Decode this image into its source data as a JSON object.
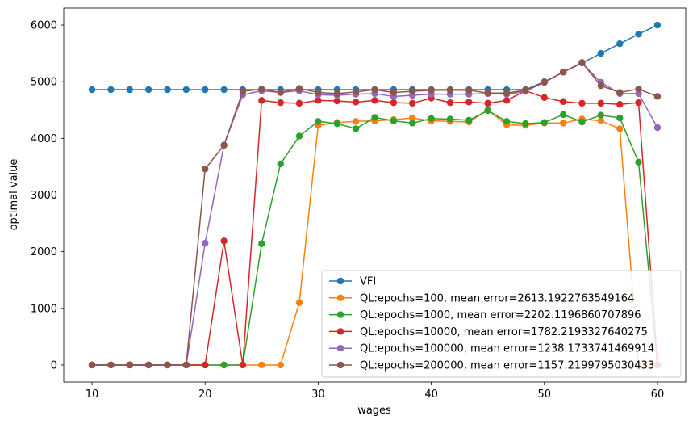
{
  "chart_data": {
    "type": "line",
    "title": "",
    "xlabel": "wages",
    "ylabel": "optimal value",
    "xlim": [
      7.5,
      62.5
    ],
    "ylim": [
      -300,
      6300
    ],
    "xticks": [
      10,
      20,
      30,
      40,
      50,
      60
    ],
    "yticks": [
      0,
      1000,
      2000,
      3000,
      4000,
      5000,
      6000
    ],
    "grid": false,
    "legend_position": "lower-right",
    "x": [
      10.0,
      11.67,
      13.33,
      15.0,
      16.67,
      18.33,
      20.0,
      21.67,
      23.33,
      25.0,
      26.67,
      28.33,
      30.0,
      31.67,
      33.33,
      35.0,
      36.67,
      38.33,
      40.0,
      41.67,
      43.33,
      45.0,
      46.67,
      48.33,
      50.0,
      51.67,
      53.33,
      55.0,
      56.67,
      58.33,
      60.0
    ],
    "series": [
      {
        "name": "VFI",
        "color": "#1f77b4",
        "values": [
          4860,
          4860,
          4860,
          4860,
          4860,
          4860,
          4860,
          4860,
          4860,
          4860,
          4860,
          4860,
          4860,
          4860,
          4860,
          4860,
          4860,
          4860,
          4860,
          4860,
          4860,
          4860,
          4860,
          4860,
          5000,
          5170,
          5330,
          5500,
          5670,
          5840,
          6000
        ]
      },
      {
        "name": "QL:epochs=100, mean error=2613.1922763549164",
        "color": "#ff7f0e",
        "values": [
          0,
          0,
          0,
          0,
          0,
          0,
          0,
          0,
          0,
          0,
          0,
          1100,
          4230,
          4280,
          4300,
          4310,
          4330,
          4360,
          4310,
          4300,
          4290,
          4500,
          4240,
          4230,
          4270,
          4270,
          4340,
          4310,
          4170,
          0,
          0
        ]
      },
      {
        "name": "QL:epochs=1000, mean error=2202.1196860707896",
        "color": "#2ca02c",
        "values": [
          0,
          0,
          0,
          0,
          0,
          0,
          0,
          0,
          0,
          2140,
          3550,
          4040,
          4300,
          4260,
          4170,
          4370,
          4310,
          4270,
          4350,
          4340,
          4320,
          4490,
          4300,
          4260,
          4280,
          4420,
          4290,
          4410,
          4360,
          3580,
          0
        ]
      },
      {
        "name": "QL:epochs=10000, mean error=1782.2193327640275",
        "color": "#d62728",
        "values": [
          0,
          0,
          0,
          0,
          0,
          0,
          0,
          2190,
          0,
          4670,
          4630,
          4620,
          4670,
          4660,
          4640,
          4670,
          4630,
          4620,
          4710,
          4630,
          4640,
          4620,
          4670,
          4840,
          4720,
          4650,
          4620,
          4620,
          4600,
          4630,
          0
        ]
      },
      {
        "name": "QL:epochs=100000, mean error=1238.1733741469914",
        "color": "#9467bd",
        "values": [
          0,
          0,
          0,
          0,
          0,
          0,
          2150,
          3880,
          4770,
          4840,
          4810,
          4840,
          4770,
          4760,
          4780,
          4790,
          4740,
          4760,
          4780,
          4780,
          4780,
          4790,
          4780,
          4830,
          4990,
          5170,
          5330,
          4990,
          4790,
          4790,
          4190
        ]
      },
      {
        "name": "QL:epochs=200000, mean error=1157.2199795030433",
        "color": "#8c564b",
        "values": [
          0,
          0,
          0,
          0,
          0,
          0,
          3460,
          3880,
          4830,
          4870,
          4810,
          4880,
          4810,
          4790,
          4820,
          4860,
          4810,
          4830,
          4850,
          4850,
          4850,
          4800,
          4800,
          4850,
          4990,
          5170,
          5340,
          4930,
          4810,
          4870,
          4740
        ]
      }
    ]
  }
}
